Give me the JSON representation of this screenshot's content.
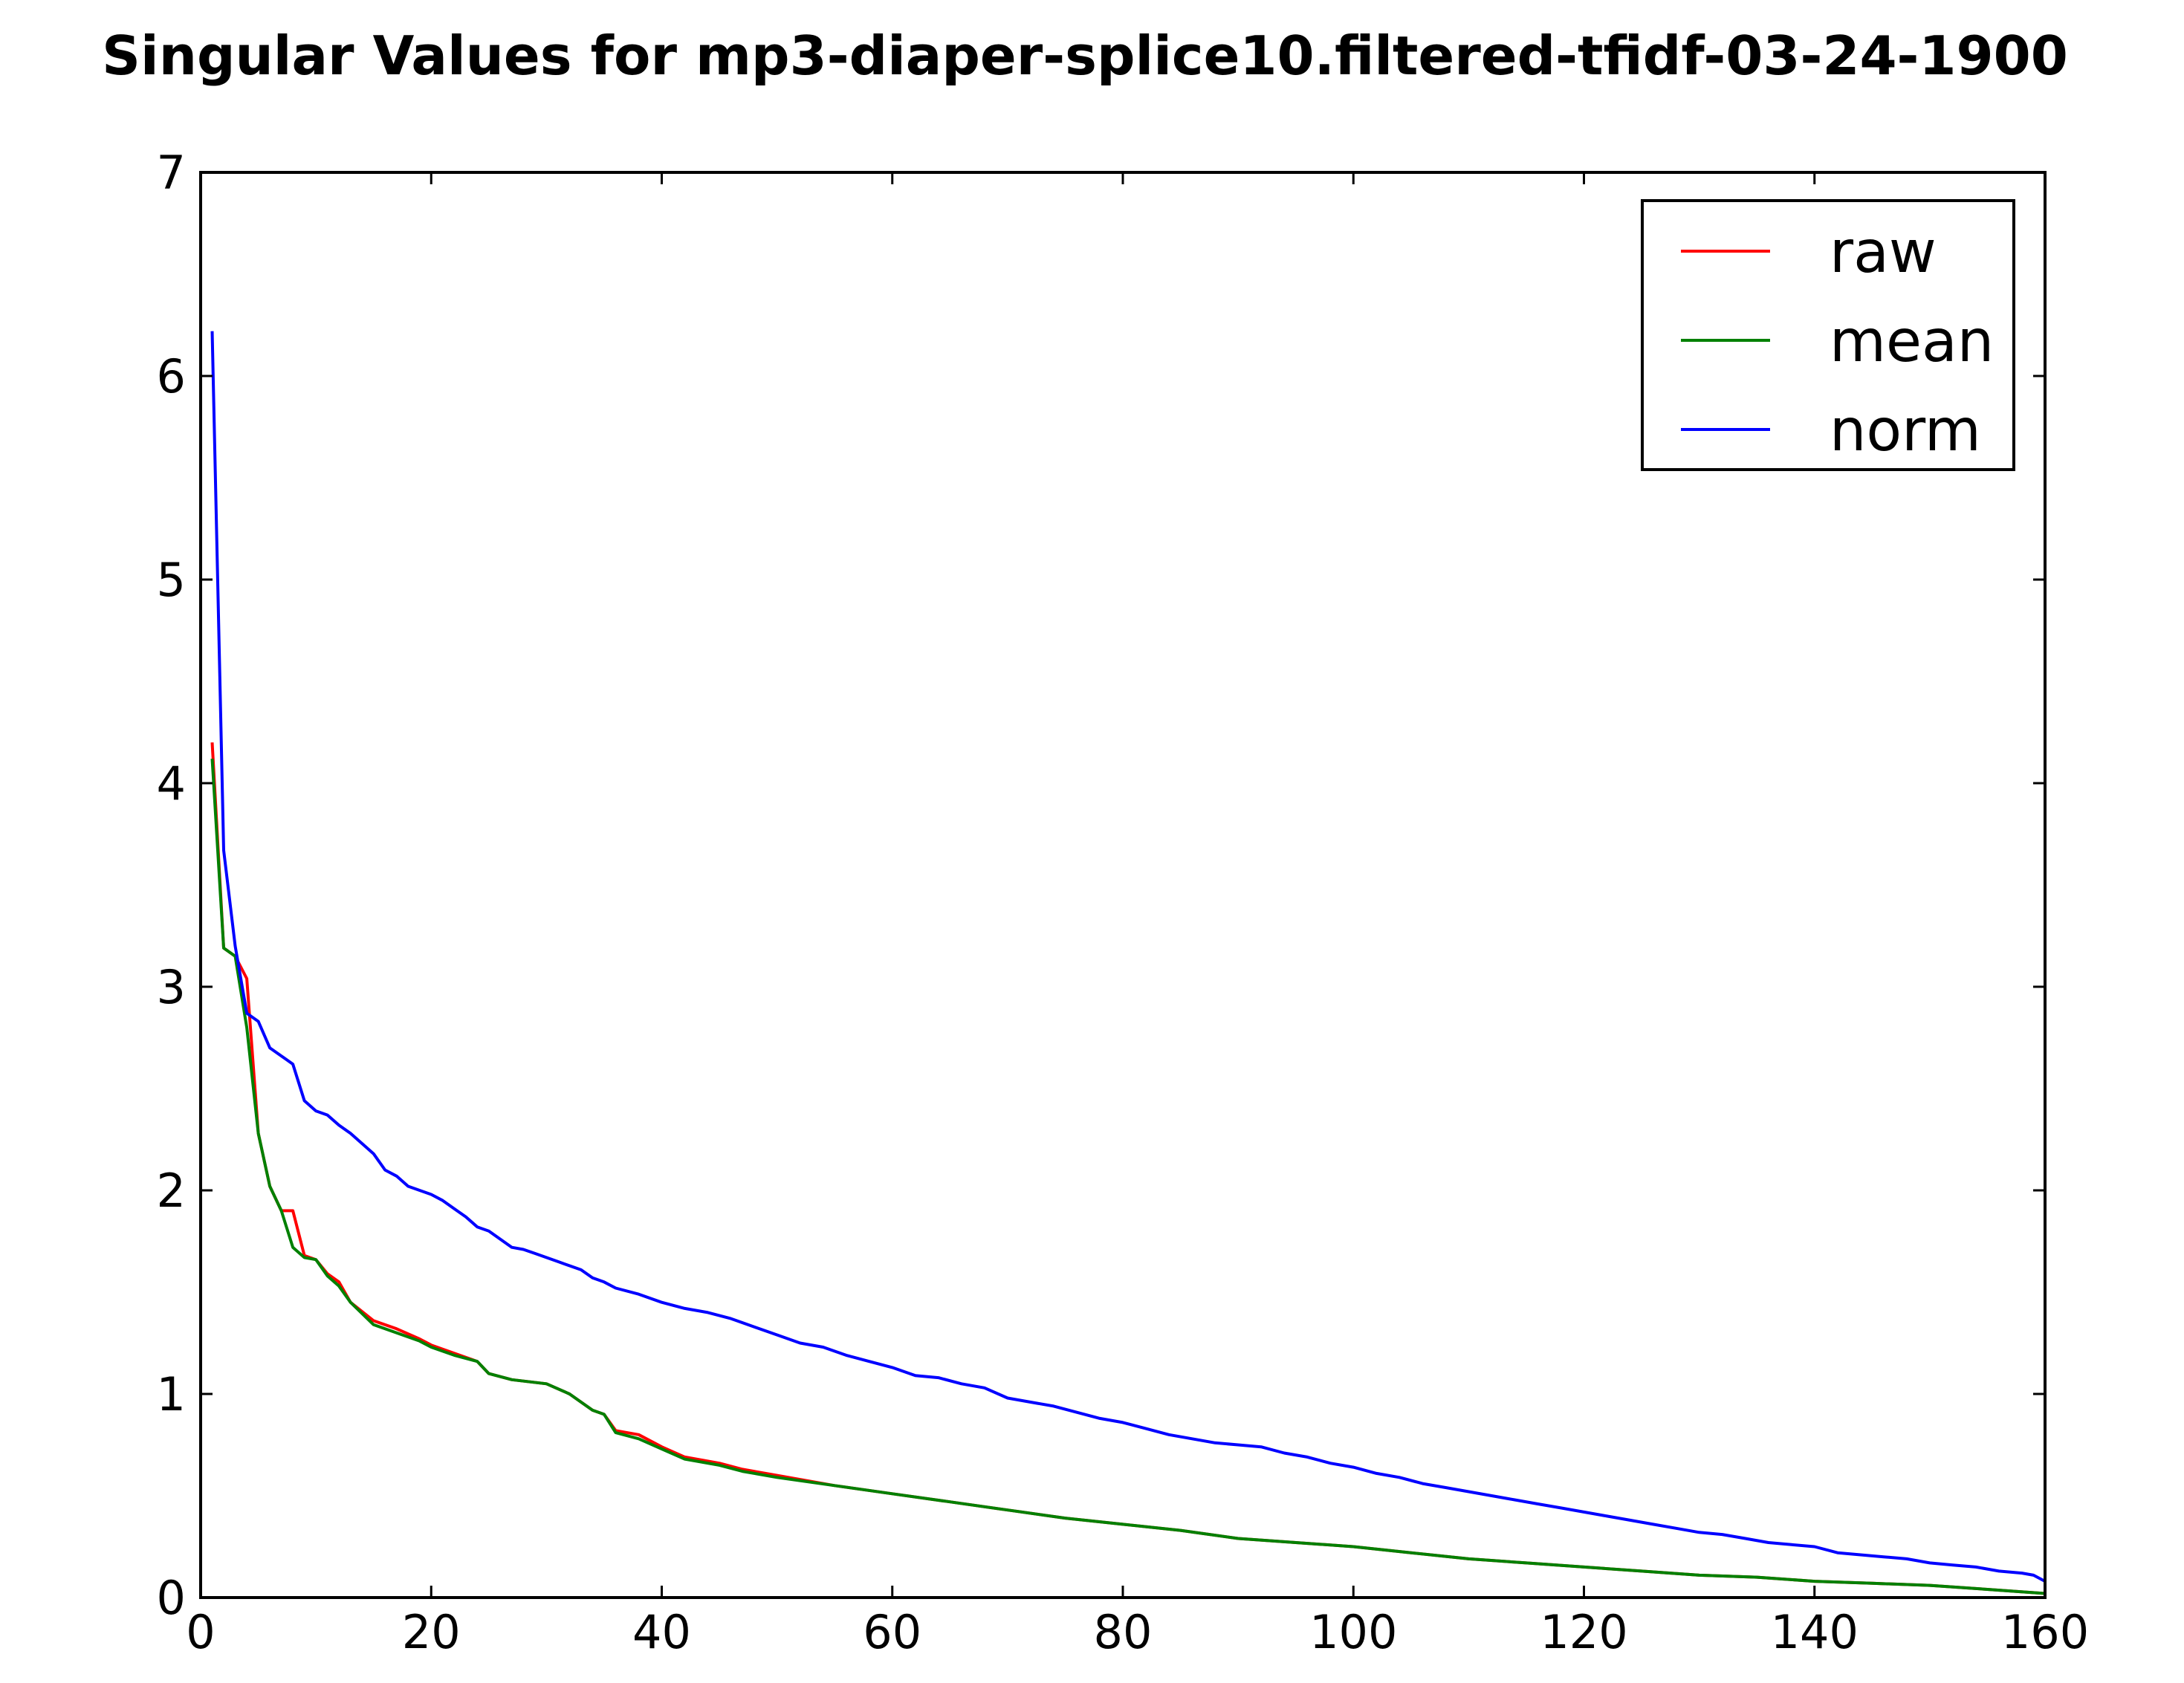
{
  "chart_data": {
    "type": "line",
    "title": "Singular Values for mp3-diaper-splice10.filtered-tfidf-03-24-1900",
    "xlabel": "",
    "ylabel": "",
    "xlim": [
      0,
      160
    ],
    "ylim": [
      0,
      7
    ],
    "x_ticks": [
      "0",
      "20",
      "40",
      "60",
      "80",
      "100",
      "120",
      "140",
      "160"
    ],
    "y_ticks": [
      "0",
      "1",
      "2",
      "3",
      "4",
      "5",
      "6",
      "7"
    ],
    "grid": false,
    "legend_position": "top-right",
    "series": [
      {
        "name": "raw",
        "color": "#ff0000",
        "points": [
          [
            1,
            4.2
          ],
          [
            2,
            3.19
          ],
          [
            3,
            3.15
          ],
          [
            4,
            3.04
          ],
          [
            5,
            2.28
          ],
          [
            6,
            2.02
          ],
          [
            7,
            1.9
          ],
          [
            8,
            1.9
          ],
          [
            9,
            1.68
          ],
          [
            10,
            1.66
          ],
          [
            11,
            1.59
          ],
          [
            12,
            1.55
          ],
          [
            13,
            1.45
          ],
          [
            15,
            1.36
          ],
          [
            17,
            1.32
          ],
          [
            19,
            1.27
          ],
          [
            20,
            1.24
          ],
          [
            22,
            1.2
          ],
          [
            24,
            1.16
          ],
          [
            25,
            1.1
          ],
          [
            27,
            1.07
          ],
          [
            30,
            1.05
          ],
          [
            32,
            1.0
          ],
          [
            34,
            0.92
          ],
          [
            35,
            0.9
          ],
          [
            36,
            0.82
          ],
          [
            38,
            0.8
          ],
          [
            40,
            0.74
          ],
          [
            42,
            0.69
          ],
          [
            45,
            0.66
          ],
          [
            47,
            0.63
          ],
          [
            50,
            0.6
          ],
          [
            55,
            0.55
          ],
          [
            60,
            0.51
          ],
          [
            65,
            0.47
          ],
          [
            70,
            0.43
          ],
          [
            75,
            0.39
          ],
          [
            80,
            0.36
          ],
          [
            85,
            0.33
          ],
          [
            90,
            0.29
          ],
          [
            95,
            0.27
          ],
          [
            100,
            0.25
          ],
          [
            105,
            0.22
          ],
          [
            110,
            0.19
          ],
          [
            115,
            0.17
          ],
          [
            120,
            0.15
          ],
          [
            125,
            0.13
          ],
          [
            130,
            0.11
          ],
          [
            135,
            0.1
          ],
          [
            140,
            0.08
          ],
          [
            145,
            0.07
          ],
          [
            150,
            0.06
          ],
          [
            155,
            0.04
          ],
          [
            160,
            0.02
          ]
        ]
      },
      {
        "name": "mean",
        "color": "#008000",
        "points": [
          [
            1,
            4.12
          ],
          [
            2,
            3.19
          ],
          [
            3,
            3.15
          ],
          [
            4,
            2.8
          ],
          [
            5,
            2.28
          ],
          [
            6,
            2.02
          ],
          [
            7,
            1.9
          ],
          [
            8,
            1.72
          ],
          [
            9,
            1.67
          ],
          [
            10,
            1.66
          ],
          [
            11,
            1.58
          ],
          [
            12,
            1.53
          ],
          [
            13,
            1.45
          ],
          [
            15,
            1.34
          ],
          [
            17,
            1.3
          ],
          [
            19,
            1.26
          ],
          [
            20,
            1.23
          ],
          [
            22,
            1.19
          ],
          [
            24,
            1.16
          ],
          [
            25,
            1.1
          ],
          [
            27,
            1.07
          ],
          [
            30,
            1.05
          ],
          [
            32,
            1.0
          ],
          [
            34,
            0.92
          ],
          [
            35,
            0.9
          ],
          [
            36,
            0.81
          ],
          [
            38,
            0.78
          ],
          [
            40,
            0.73
          ],
          [
            42,
            0.68
          ],
          [
            45,
            0.65
          ],
          [
            47,
            0.62
          ],
          [
            50,
            0.59
          ],
          [
            55,
            0.55
          ],
          [
            60,
            0.51
          ],
          [
            65,
            0.47
          ],
          [
            70,
            0.43
          ],
          [
            75,
            0.39
          ],
          [
            80,
            0.36
          ],
          [
            85,
            0.33
          ],
          [
            90,
            0.29
          ],
          [
            95,
            0.27
          ],
          [
            100,
            0.25
          ],
          [
            105,
            0.22
          ],
          [
            110,
            0.19
          ],
          [
            115,
            0.17
          ],
          [
            120,
            0.15
          ],
          [
            125,
            0.13
          ],
          [
            130,
            0.11
          ],
          [
            135,
            0.1
          ],
          [
            140,
            0.08
          ],
          [
            145,
            0.07
          ],
          [
            150,
            0.06
          ],
          [
            155,
            0.04
          ],
          [
            160,
            0.02
          ]
        ]
      },
      {
        "name": "norm",
        "color": "#0000ff",
        "points": [
          [
            1,
            6.22
          ],
          [
            2,
            3.67
          ],
          [
            3,
            3.2
          ],
          [
            4,
            2.87
          ],
          [
            5,
            2.83
          ],
          [
            6,
            2.7
          ],
          [
            8,
            2.62
          ],
          [
            9,
            2.44
          ],
          [
            10,
            2.39
          ],
          [
            11,
            2.37
          ],
          [
            12,
            2.32
          ],
          [
            13,
            2.28
          ],
          [
            14,
            2.23
          ],
          [
            15,
            2.18
          ],
          [
            16,
            2.1
          ],
          [
            17,
            2.07
          ],
          [
            18,
            2.02
          ],
          [
            19,
            2.0
          ],
          [
            20,
            1.98
          ],
          [
            21,
            1.95
          ],
          [
            22,
            1.91
          ],
          [
            23,
            1.87
          ],
          [
            24,
            1.82
          ],
          [
            25,
            1.8
          ],
          [
            27,
            1.72
          ],
          [
            28,
            1.71
          ],
          [
            29,
            1.69
          ],
          [
            31,
            1.65
          ],
          [
            33,
            1.61
          ],
          [
            34,
            1.57
          ],
          [
            35,
            1.55
          ],
          [
            36,
            1.52
          ],
          [
            38,
            1.49
          ],
          [
            40,
            1.45
          ],
          [
            42,
            1.42
          ],
          [
            44,
            1.4
          ],
          [
            46,
            1.37
          ],
          [
            48,
            1.33
          ],
          [
            50,
            1.29
          ],
          [
            52,
            1.25
          ],
          [
            54,
            1.23
          ],
          [
            56,
            1.19
          ],
          [
            58,
            1.16
          ],
          [
            60,
            1.13
          ],
          [
            62,
            1.09
          ],
          [
            64,
            1.08
          ],
          [
            66,
            1.05
          ],
          [
            68,
            1.03
          ],
          [
            70,
            0.98
          ],
          [
            72,
            0.96
          ],
          [
            74,
            0.94
          ],
          [
            76,
            0.91
          ],
          [
            78,
            0.88
          ],
          [
            80,
            0.86
          ],
          [
            82,
            0.83
          ],
          [
            84,
            0.8
          ],
          [
            86,
            0.78
          ],
          [
            88,
            0.76
          ],
          [
            90,
            0.75
          ],
          [
            92,
            0.74
          ],
          [
            94,
            0.71
          ],
          [
            96,
            0.69
          ],
          [
            98,
            0.66
          ],
          [
            100,
            0.64
          ],
          [
            102,
            0.61
          ],
          [
            104,
            0.59
          ],
          [
            106,
            0.56
          ],
          [
            108,
            0.54
          ],
          [
            110,
            0.52
          ],
          [
            112,
            0.5
          ],
          [
            114,
            0.48
          ],
          [
            116,
            0.46
          ],
          [
            118,
            0.44
          ],
          [
            120,
            0.42
          ],
          [
            122,
            0.4
          ],
          [
            124,
            0.38
          ],
          [
            126,
            0.36
          ],
          [
            128,
            0.34
          ],
          [
            130,
            0.32
          ],
          [
            132,
            0.31
          ],
          [
            134,
            0.29
          ],
          [
            136,
            0.27
          ],
          [
            138,
            0.26
          ],
          [
            140,
            0.25
          ],
          [
            142,
            0.22
          ],
          [
            144,
            0.21
          ],
          [
            146,
            0.2
          ],
          [
            148,
            0.19
          ],
          [
            150,
            0.17
          ],
          [
            152,
            0.16
          ],
          [
            154,
            0.15
          ],
          [
            156,
            0.13
          ],
          [
            158,
            0.12
          ],
          [
            159,
            0.11
          ],
          [
            160,
            0.08
          ]
        ]
      }
    ]
  }
}
